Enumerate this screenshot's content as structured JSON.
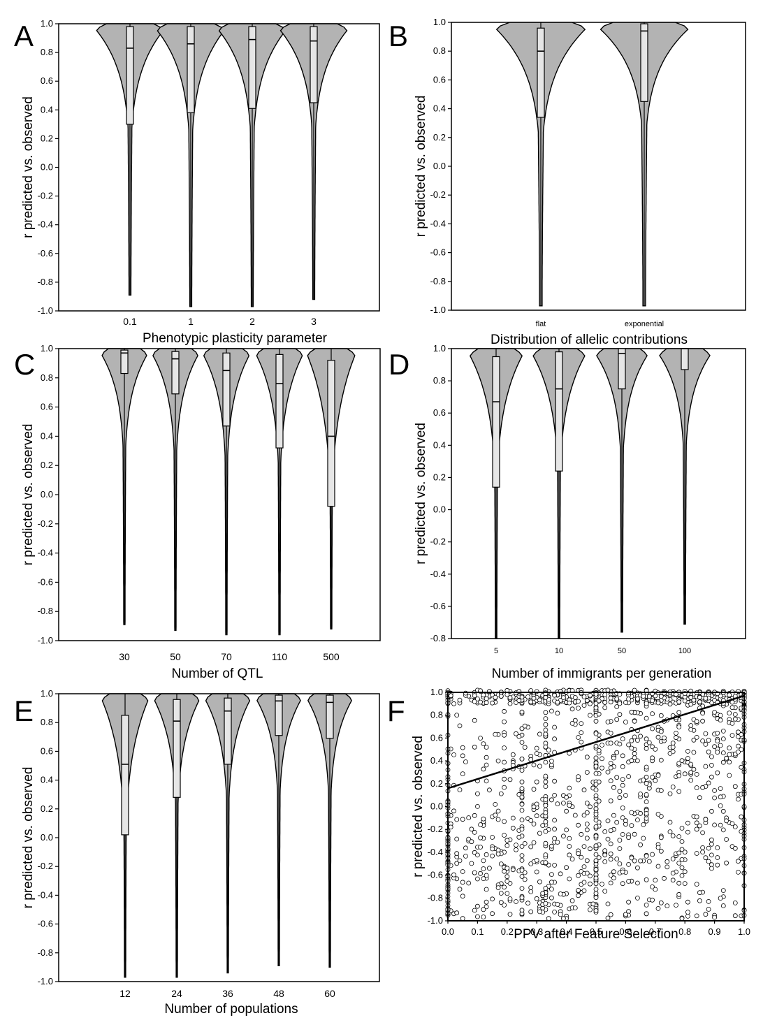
{
  "chart_data": [
    {
      "panel": "A",
      "type": "violin",
      "categories": [
        "0.1",
        "1",
        "2",
        "3"
      ],
      "xlabel": "Phenotypic plasticity parameter",
      "ylabel": "r predicted vs. observed",
      "ylim": [
        -1.0,
        1.0
      ],
      "yticks": [
        "1.0",
        "0.8",
        "0.6",
        "0.4",
        "0.2",
        "0.0",
        "-0.2",
        "-0.4",
        "-0.6",
        "-0.8",
        "-1.0"
      ],
      "summary": [
        {
          "category": "0.1",
          "min": -0.89,
          "q1": 0.3,
          "median": 0.83,
          "q3": 0.98,
          "max": 1.0
        },
        {
          "category": "1",
          "min": -0.97,
          "q1": 0.38,
          "median": 0.86,
          "q3": 0.98,
          "max": 1.0
        },
        {
          "category": "2",
          "min": -0.97,
          "q1": 0.41,
          "median": 0.89,
          "q3": 0.98,
          "max": 1.0
        },
        {
          "category": "3",
          "min": -0.92,
          "q1": 0.45,
          "median": 0.88,
          "q3": 0.98,
          "max": 1.0
        }
      ]
    },
    {
      "panel": "B",
      "type": "violin",
      "categories": [
        "flat",
        "exponential"
      ],
      "xlabel": "Distribution of allelic contributions",
      "ylabel": "r predicted vs. observed",
      "ylim": [
        -1.0,
        1.0
      ],
      "yticks": [
        "1.0",
        "0.8",
        "0.6",
        "0.4",
        "0.2",
        "0.0",
        "-0.2",
        "-0.4",
        "-0.6",
        "-0.8",
        "-1.0"
      ],
      "summary": [
        {
          "category": "flat",
          "min": -0.97,
          "q1": 0.34,
          "median": 0.8,
          "q3": 0.96,
          "max": 1.0
        },
        {
          "category": "exponential",
          "min": -0.97,
          "q1": 0.45,
          "median": 0.94,
          "q3": 0.99,
          "max": 1.0
        }
      ]
    },
    {
      "panel": "C",
      "type": "violin",
      "categories": [
        "30",
        "50",
        "70",
        "110",
        "500"
      ],
      "xlabel": "Number of QTL",
      "ylabel": "r predicted vs. observed",
      "ylim": [
        -1.0,
        1.0
      ],
      "yticks": [
        "1.0",
        "0.8",
        "0.6",
        "0.4",
        "0.2",
        "0.0",
        "-0.2",
        "-0.4",
        "-0.6",
        "-0.8",
        "-1.0"
      ],
      "summary": [
        {
          "category": "30",
          "min": -0.89,
          "q1": 0.83,
          "median": 0.97,
          "q3": 0.99,
          "max": 1.0
        },
        {
          "category": "50",
          "min": -0.93,
          "q1": 0.69,
          "median": 0.93,
          "q3": 0.98,
          "max": 1.0
        },
        {
          "category": "70",
          "min": -0.96,
          "q1": 0.47,
          "median": 0.85,
          "q3": 0.97,
          "max": 1.0
        },
        {
          "category": "110",
          "min": -0.96,
          "q1": 0.32,
          "median": 0.76,
          "q3": 0.96,
          "max": 1.0
        },
        {
          "category": "500",
          "min": -0.92,
          "q1": -0.08,
          "median": 0.4,
          "q3": 0.92,
          "max": 1.0
        }
      ]
    },
    {
      "panel": "D",
      "type": "violin",
      "categories": [
        "5",
        "10",
        "50",
        "100"
      ],
      "xlabel": "Number of immigrants per generation",
      "ylabel": "r predicted vs. observed",
      "ylim": [
        -0.8,
        1.0
      ],
      "yticks": [
        "1.0",
        "0.8",
        "0.6",
        "0.4",
        "0.2",
        "0.0",
        "-0.2",
        "-0.4",
        "-0.6",
        "-0.8"
      ],
      "summary": [
        {
          "category": "5",
          "min": -0.8,
          "q1": 0.14,
          "median": 0.67,
          "q3": 0.95,
          "max": 1.0
        },
        {
          "category": "10",
          "min": -0.8,
          "q1": 0.24,
          "median": 0.75,
          "q3": 0.98,
          "max": 1.0
        },
        {
          "category": "50",
          "min": -0.76,
          "q1": 0.75,
          "median": 0.97,
          "q3": 1.0,
          "max": 1.0
        },
        {
          "category": "100",
          "min": -0.71,
          "q1": 0.87,
          "median": 1.0,
          "q3": 1.0,
          "max": 1.0
        }
      ]
    },
    {
      "panel": "E",
      "type": "violin",
      "categories": [
        "12",
        "24",
        "36",
        "48",
        "60"
      ],
      "xlabel": "Number of populations",
      "ylabel": "r predicted vs. observed",
      "ylim": [
        -1.0,
        1.0
      ],
      "yticks": [
        "1.0",
        "0.8",
        "0.6",
        "0.4",
        "0.2",
        "0.0",
        "-0.2",
        "-0.4",
        "-0.6",
        "-0.8",
        "-1.0"
      ],
      "summary": [
        {
          "category": "12",
          "min": -0.97,
          "q1": 0.02,
          "median": 0.51,
          "q3": 0.85,
          "max": 1.0
        },
        {
          "category": "24",
          "min": -0.97,
          "q1": 0.28,
          "median": 0.81,
          "q3": 0.96,
          "max": 1.0
        },
        {
          "category": "36",
          "min": -0.94,
          "q1": 0.51,
          "median": 0.88,
          "q3": 0.97,
          "max": 1.0
        },
        {
          "category": "48",
          "min": -0.89,
          "q1": 0.71,
          "median": 0.95,
          "q3": 0.99,
          "max": 1.0
        },
        {
          "category": "60",
          "min": -0.9,
          "q1": 0.69,
          "median": 0.94,
          "q3": 0.99,
          "max": 1.0
        }
      ]
    },
    {
      "panel": "F",
      "type": "scatter",
      "xlabel": "PPV after Feature Selection",
      "ylabel": "r predicted vs. observed",
      "xlim": [
        0.0,
        1.0
      ],
      "ylim": [
        -1.0,
        1.0
      ],
      "xticks": [
        "0.0",
        "0.1",
        "0.2",
        "0.3",
        "0.4",
        "0.5",
        "0.6",
        "0.7",
        "0.8",
        "0.9",
        "1.0"
      ],
      "yticks": [
        "1.0",
        "0.8",
        "0.6",
        "0.4",
        "0.2",
        "0.0",
        "-0.2",
        "-0.4",
        "-0.6",
        "-0.8",
        "-1.0"
      ],
      "trend_line": {
        "x": [
          0.0,
          1.0
        ],
        "y": [
          0.16,
          0.97
        ]
      },
      "n_points_approx": 1500,
      "marker": "open-circle"
    }
  ]
}
